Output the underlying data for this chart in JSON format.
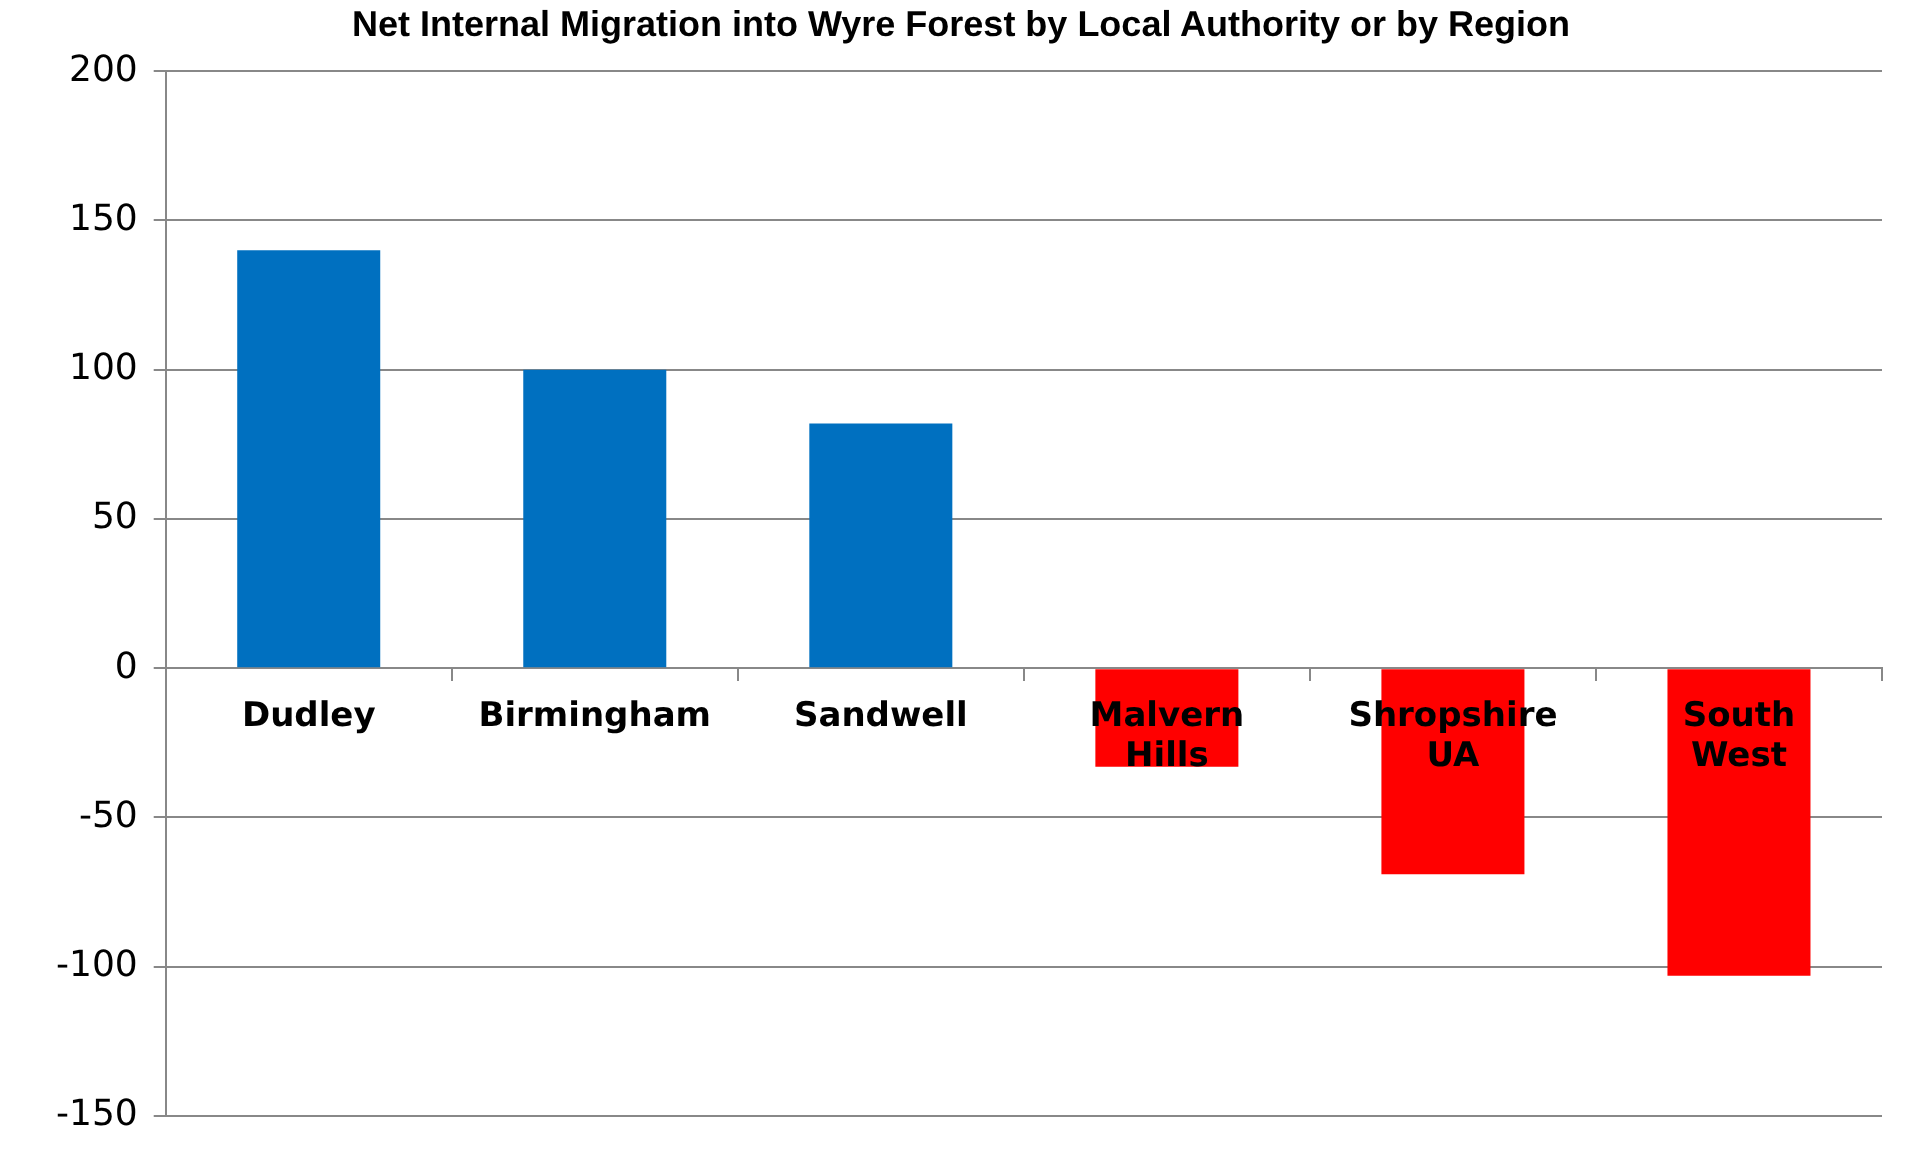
{
  "chart_data": {
    "type": "bar",
    "title": "Net Internal Migration into Wyre Forest by Local Authority or by Region",
    "categories": [
      "Dudley",
      "Birmingham",
      "Sandwell",
      "Malvern Hills",
      "Shropshire UA",
      "South West"
    ],
    "values": [
      140,
      100,
      82,
      -33,
      -69,
      -103
    ],
    "colors": [
      "#0070c0",
      "#0070c0",
      "#0070c0",
      "#ff0000",
      "#ff0000",
      "#ff0000"
    ],
    "ylim": [
      -150,
      200
    ],
    "yticks": [
      -150,
      -100,
      -50,
      0,
      50,
      100,
      150,
      200
    ],
    "grid": "y",
    "legend": false
  }
}
